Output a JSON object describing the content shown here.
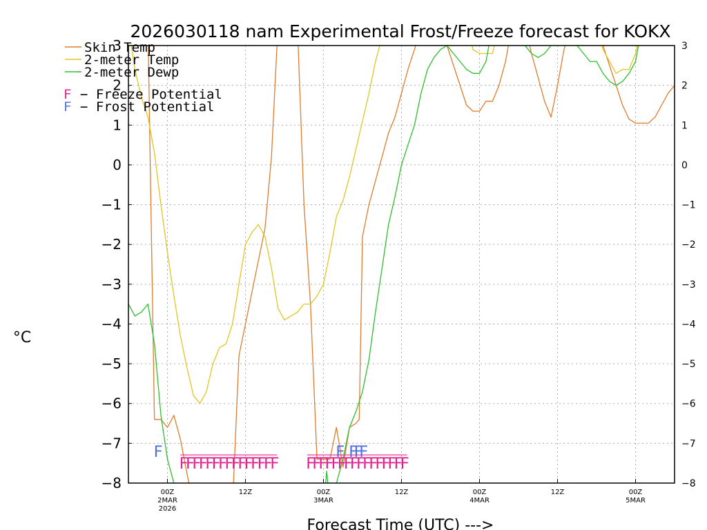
{
  "chart_data": {
    "type": "line",
    "title": "2026030118 nam Experimental Frost/Freeze forecast for KOKX",
    "xlabel": "Forecast Time (UTC) --->",
    "ylabel": "°C",
    "ylim": [
      -8,
      3
    ],
    "y_ticks": [
      "-8",
      "-7",
      "-6",
      "-5",
      "-4",
      "-3",
      "-2",
      "-1",
      "0",
      "1",
      "2",
      "3"
    ],
    "x_ticks": [
      {
        "hour": 6,
        "lines": [
          "00Z",
          "2MAR",
          "2026"
        ]
      },
      {
        "hour": 18,
        "lines": [
          "12Z"
        ]
      },
      {
        "hour": 30,
        "lines": [
          "00Z",
          "3MAR"
        ]
      },
      {
        "hour": 42,
        "lines": [
          "12Z"
        ]
      },
      {
        "hour": 54,
        "lines": [
          "00Z",
          "4MAR"
        ]
      },
      {
        "hour": 66,
        "lines": [
          "12Z"
        ]
      },
      {
        "hour": 78,
        "lines": [
          "00Z",
          "5MAR"
        ]
      }
    ],
    "xlim": [
      0,
      84
    ],
    "series": [
      {
        "name": "Skin Temp",
        "label": "Skin Temp",
        "color": "#e07a2c",
        "points": [
          [
            0,
            3.5
          ],
          [
            3,
            3.5
          ],
          [
            4,
            -6.4
          ],
          [
            5,
            -6.4
          ],
          [
            6,
            -6.6
          ],
          [
            7,
            -6.3
          ],
          [
            8,
            -6.9
          ],
          [
            10,
            -8.6
          ],
          [
            16,
            -8.6
          ],
          [
            17,
            -4.8
          ],
          [
            18,
            -4.0
          ],
          [
            19,
            -3.2
          ],
          [
            20,
            -2.4
          ],
          [
            21,
            -1.6
          ],
          [
            22,
            0.2
          ],
          [
            23,
            3.5
          ],
          [
            26,
            3.5
          ],
          [
            27,
            -1.0
          ],
          [
            28,
            -3.5
          ],
          [
            29,
            -7.4
          ],
          [
            30,
            -7.4
          ],
          [
            31,
            -7.4
          ],
          [
            32,
            -6.6
          ],
          [
            33,
            -7.6
          ],
          [
            34,
            -6.6
          ],
          [
            35,
            -6.5
          ],
          [
            35.5,
            -6.4
          ],
          [
            36,
            -1.8
          ],
          [
            37,
            -1.0
          ],
          [
            38,
            -0.4
          ],
          [
            39,
            0.2
          ],
          [
            40,
            0.8
          ],
          [
            41,
            1.2
          ],
          [
            42,
            1.8
          ],
          [
            43,
            2.4
          ],
          [
            44,
            2.9
          ],
          [
            45,
            3.5
          ],
          [
            47,
            3.0
          ],
          [
            48,
            3.5
          ],
          [
            52,
            1.5
          ],
          [
            53,
            1.35
          ],
          [
            54,
            1.35
          ],
          [
            55,
            1.6
          ],
          [
            56,
            1.6
          ],
          [
            57,
            2.0
          ],
          [
            58,
            2.6
          ],
          [
            59,
            3.5
          ],
          [
            61,
            3.5
          ],
          [
            62,
            2.8
          ],
          [
            63,
            2.2
          ],
          [
            64,
            1.6
          ],
          [
            65,
            1.2
          ],
          [
            66,
            2.0
          ],
          [
            67,
            2.9
          ],
          [
            68,
            3.5
          ],
          [
            72,
            3.5
          ],
          [
            73,
            3.0
          ],
          [
            74,
            2.5
          ],
          [
            75,
            2.0
          ],
          [
            76,
            1.5
          ],
          [
            77,
            1.15
          ],
          [
            78,
            1.05
          ],
          [
            80,
            1.05
          ],
          [
            81,
            1.2
          ],
          [
            82,
            1.5
          ],
          [
            83,
            1.8
          ],
          [
            84,
            2.0
          ]
        ]
      },
      {
        "name": "2-meter Temp",
        "label": "2-meter Temp",
        "color": "#e3c41f",
        "points": [
          [
            0,
            3.5
          ],
          [
            1,
            2.4
          ],
          [
            2,
            1.7
          ],
          [
            3,
            1.2
          ],
          [
            4,
            0.3
          ],
          [
            5,
            -1.0
          ],
          [
            6,
            -2.2
          ],
          [
            7,
            -3.3
          ],
          [
            8,
            -4.3
          ],
          [
            9,
            -5.1
          ],
          [
            10,
            -5.8
          ],
          [
            11,
            -6.0
          ],
          [
            12,
            -5.7
          ],
          [
            13,
            -5.0
          ],
          [
            14,
            -4.6
          ],
          [
            15,
            -4.5
          ],
          [
            16,
            -4.0
          ],
          [
            17,
            -3.0
          ],
          [
            18,
            -2.0
          ],
          [
            19,
            -1.7
          ],
          [
            20,
            -1.5
          ],
          [
            21,
            -1.8
          ],
          [
            22,
            -2.6
          ],
          [
            23,
            -3.6
          ],
          [
            24,
            -3.9
          ],
          [
            25,
            -3.8
          ],
          [
            26,
            -3.7
          ],
          [
            27,
            -3.5
          ],
          [
            28,
            -3.5
          ],
          [
            29,
            -3.3
          ],
          [
            30,
            -3.0
          ],
          [
            31,
            -2.2
          ],
          [
            32,
            -1.3
          ],
          [
            33,
            -0.9
          ],
          [
            34,
            -0.3
          ],
          [
            35,
            0.4
          ],
          [
            36,
            1.1
          ],
          [
            37,
            1.8
          ],
          [
            38,
            2.6
          ],
          [
            39,
            3.2
          ],
          [
            40,
            3.5
          ],
          [
            52,
            3.5
          ],
          [
            53,
            2.9
          ],
          [
            54,
            2.8
          ],
          [
            55,
            2.8
          ],
          [
            56,
            2.8
          ],
          [
            57,
            3.5
          ],
          [
            72,
            3.5
          ],
          [
            73,
            2.9
          ],
          [
            74,
            2.6
          ],
          [
            75,
            2.3
          ],
          [
            76,
            2.4
          ],
          [
            77,
            2.4
          ],
          [
            78,
            2.8
          ],
          [
            79,
            3.5
          ],
          [
            84,
            3.5
          ]
        ]
      },
      {
        "name": "2-meter Dewp",
        "label": "2-meter Dewp",
        "color": "#2bbf2b",
        "points": [
          [
            0,
            -3.5
          ],
          [
            1,
            -3.8
          ],
          [
            2,
            -3.7
          ],
          [
            3,
            -3.5
          ],
          [
            4,
            -4.5
          ],
          [
            5,
            -6.3
          ],
          [
            6,
            -7.4
          ],
          [
            7,
            -8.0
          ],
          [
            8,
            -8.6
          ],
          [
            30,
            -8.6
          ],
          [
            30.5,
            -7.7
          ],
          [
            31,
            -8.6
          ],
          [
            32,
            -8.0
          ],
          [
            33,
            -7.4
          ],
          [
            34,
            -6.6
          ],
          [
            35,
            -6.2
          ],
          [
            36,
            -5.7
          ],
          [
            37,
            -4.9
          ],
          [
            38,
            -3.7
          ],
          [
            39,
            -2.6
          ],
          [
            40,
            -1.5
          ],
          [
            41,
            -0.8
          ],
          [
            42,
            0.0
          ],
          [
            43,
            0.5
          ],
          [
            44,
            1.0
          ],
          [
            45,
            1.8
          ],
          [
            46,
            2.4
          ],
          [
            47,
            2.7
          ],
          [
            48,
            2.9
          ],
          [
            49,
            3.0
          ],
          [
            50,
            2.8
          ],
          [
            51,
            2.6
          ],
          [
            52,
            2.4
          ],
          [
            53,
            2.3
          ],
          [
            54,
            2.3
          ],
          [
            55,
            2.6
          ],
          [
            56,
            3.5
          ],
          [
            60,
            3.5
          ],
          [
            61,
            3.0
          ],
          [
            62,
            2.8
          ],
          [
            63,
            2.7
          ],
          [
            64,
            2.8
          ],
          [
            65,
            3.0
          ],
          [
            66,
            3.5
          ],
          [
            68,
            3.5
          ],
          [
            69,
            3.0
          ],
          [
            70,
            2.8
          ],
          [
            71,
            2.6
          ],
          [
            72,
            2.6
          ],
          [
            73,
            2.3
          ],
          [
            74,
            2.1
          ],
          [
            75,
            2.0
          ],
          [
            76,
            2.1
          ],
          [
            77,
            2.3
          ],
          [
            78,
            2.6
          ],
          [
            79,
            3.5
          ],
          [
            84,
            3.5
          ]
        ]
      }
    ],
    "legend": {
      "freeze_label": "− Freeze Potential",
      "frost_label": "− Frost Potential",
      "freeze_color": "#e0208f",
      "frost_color": "#4f6fe0"
    },
    "freeze_marks": {
      "symbol": "F",
      "groups": [
        {
          "start": 8,
          "end": 22,
          "count": 15,
          "y": -7.5
        },
        {
          "start": 27.5,
          "end": 42,
          "count": 16,
          "y": -7.5
        }
      ]
    },
    "frost_marks": {
      "symbol": "F",
      "points": [
        [
          4.5,
          -7.2
        ],
        [
          32.5,
          -7.2
        ],
        [
          34.5,
          -7.2
        ],
        [
          35.3,
          -7.2
        ],
        [
          36.1,
          -7.2
        ]
      ]
    }
  }
}
